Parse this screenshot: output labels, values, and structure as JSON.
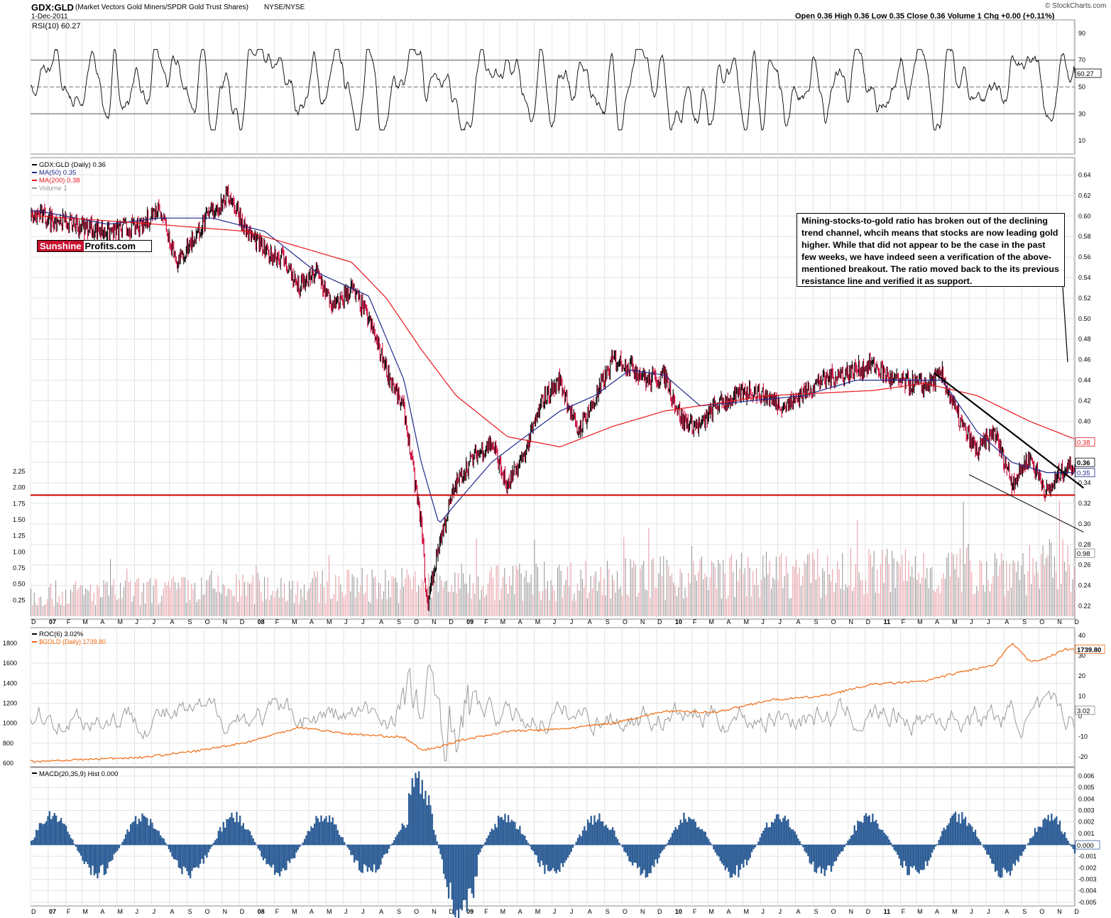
{
  "header": {
    "symbol": "GDX:GLD",
    "description": "(Market Vectors Gold Miners/SPDR Gold Trust Shares)",
    "exchange": "NYSE/NYSE",
    "date": "1-Dec-2011",
    "ohlc": "Open 0.36  High 0.36  Low 0.35  Close 0.36  Volume 1  Chg +0.00 (+0.11%)",
    "copyright": "© StockCharts.com"
  },
  "logo": {
    "part1": "Sunshine",
    "part2": "Profits.com"
  },
  "annotation": "Mining-stocks-to-gold ratio has broken out of the declining trend channel, whcih means that stocks are now leading gold higher. While that did not appear to be the case in the past few weeks, we have indeed seen a verification of the above-mentioned breakout. The ratio moved back to the its previous resistance line and verified it as support.",
  "colors": {
    "price_up": "#000000",
    "price_down": "#cc0033",
    "ma50": "#1f2a8c",
    "ma200": "#e8161c",
    "support": "#cc0000",
    "volume_up": "#9a9a9a",
    "volume_down": "#e8a0a8",
    "gold": "#ee6a10",
    "roc": "#9a9a9a",
    "macd": "#2d5d96"
  },
  "chart_data": [
    {
      "type": "line",
      "title": "RSI(10) 60.27",
      "last_value": "60.27",
      "ylim": [
        0,
        100
      ],
      "y_ticks": [
        "90",
        "70",
        "50",
        "30",
        "10"
      ],
      "reference_lines": [
        70,
        50,
        30
      ],
      "approx_range": [
        18,
        78
      ]
    },
    {
      "type": "line",
      "title": "GDX:GLD (Daily) 0.36",
      "x_start": "Dec 2006",
      "x_end": "Dec 2011",
      "ylim": [
        0.21,
        0.65
      ],
      "y_ticks": [
        "0.64",
        "0.62",
        "0.60",
        "0.58",
        "0.56",
        "0.54",
        "0.52",
        "0.50",
        "0.48",
        "0.46",
        "0.44",
        "0.42",
        "0.40",
        "0.38",
        "0.36",
        "0.34",
        "0.32",
        "0.30",
        "0.28",
        "0.26",
        "0.24",
        "0.22"
      ],
      "legend": [
        {
          "name": "GDX:GLD (Daily) 0.36",
          "color": "#000000"
        },
        {
          "name": "MA(50) 0.35",
          "color": "#1f2a8c"
        },
        {
          "name": "MA(200) 0.38",
          "color": "#e8161c"
        },
        {
          "name": "Volume 1",
          "color": "#9a9a9a"
        }
      ],
      "labels_right": {
        "close": "0.36",
        "ma50": "0.35",
        "ma200": "0.38",
        "volume": "0.98"
      },
      "series": [
        {
          "name": "GDX:GLD",
          "points": [
            [
              "2006-12",
              0.6
            ],
            [
              "2007-02",
              0.592
            ],
            [
              "2007-04",
              0.585
            ],
            [
              "2007-06",
              0.59
            ],
            [
              "2007-07",
              0.61
            ],
            [
              "2007-08",
              0.555
            ],
            [
              "2007-09",
              0.58
            ],
            [
              "2007-10",
              0.605
            ],
            [
              "2007-11",
              0.62
            ],
            [
              "2007-12",
              0.585
            ],
            [
              "2008-01",
              0.565
            ],
            [
              "2008-02",
              0.56
            ],
            [
              "2008-03",
              0.53
            ],
            [
              "2008-04",
              0.545
            ],
            [
              "2008-05",
              0.51
            ],
            [
              "2008-06",
              0.53
            ],
            [
              "2008-07",
              0.5
            ],
            [
              "2008-08",
              0.45
            ],
            [
              "2008-09",
              0.41
            ],
            [
              "2008-10",
              0.3
            ],
            [
              "2008-10-25",
              0.22
            ],
            [
              "2008-11",
              0.28
            ],
            [
              "2008-12",
              0.34
            ],
            [
              "2009-01",
              0.365
            ],
            [
              "2009-02",
              0.38
            ],
            [
              "2009-03",
              0.335
            ],
            [
              "2009-04",
              0.37
            ],
            [
              "2009-05",
              0.42
            ],
            [
              "2009-06",
              0.44
            ],
            [
              "2009-07",
              0.39
            ],
            [
              "2009-08",
              0.42
            ],
            [
              "2009-09",
              0.46
            ],
            [
              "2009-10",
              0.455
            ],
            [
              "2009-11",
              0.44
            ],
            [
              "2009-12",
              0.445
            ],
            [
              "2010-01",
              0.4
            ],
            [
              "2010-02",
              0.395
            ],
            [
              "2010-03",
              0.415
            ],
            [
              "2010-05",
              0.43
            ],
            [
              "2010-07",
              0.415
            ],
            [
              "2010-09",
              0.44
            ],
            [
              "2010-11",
              0.45
            ],
            [
              "2010-12",
              0.455
            ],
            [
              "2011-01",
              0.44
            ],
            [
              "2011-03",
              0.435
            ],
            [
              "2011-04",
              0.445
            ],
            [
              "2011-05",
              0.4
            ],
            [
              "2011-06",
              0.37
            ],
            [
              "2011-07",
              0.39
            ],
            [
              "2011-08",
              0.34
            ],
            [
              "2011-09",
              0.365
            ],
            [
              "2011-10",
              0.33
            ],
            [
              "2011-11",
              0.355
            ],
            [
              "2011-12",
              0.36
            ]
          ]
        },
        {
          "name": "MA(50)",
          "points": [
            [
              "2006-12",
              0.605
            ],
            [
              "2007-04",
              0.592
            ],
            [
              "2007-07",
              0.598
            ],
            [
              "2007-10",
              0.598
            ],
            [
              "2008-01",
              0.585
            ],
            [
              "2008-04",
              0.545
            ],
            [
              "2008-07",
              0.522
            ],
            [
              "2008-09",
              0.44
            ],
            [
              "2008-10",
              0.36
            ],
            [
              "2008-11",
              0.3
            ],
            [
              "2008-12",
              0.32
            ],
            [
              "2009-02",
              0.36
            ],
            [
              "2009-04",
              0.385
            ],
            [
              "2009-06",
              0.41
            ],
            [
              "2009-08",
              0.425
            ],
            [
              "2009-10",
              0.45
            ],
            [
              "2009-12",
              0.445
            ],
            [
              "2010-02",
              0.415
            ],
            [
              "2010-05",
              0.42
            ],
            [
              "2010-08",
              0.425
            ],
            [
              "2010-11",
              0.44
            ],
            [
              "2011-02",
              0.44
            ],
            [
              "2011-04",
              0.44
            ],
            [
              "2011-06",
              0.39
            ],
            [
              "2011-08",
              0.36
            ],
            [
              "2011-10",
              0.35
            ],
            [
              "2011-12",
              0.35
            ]
          ]
        },
        {
          "name": "MA(200)",
          "points": [
            [
              "2006-12",
              0.6
            ],
            [
              "2007-06",
              0.593
            ],
            [
              "2007-12",
              0.585
            ],
            [
              "2008-03",
              0.57
            ],
            [
              "2008-06",
              0.555
            ],
            [
              "2008-08",
              0.52
            ],
            [
              "2008-10",
              0.47
            ],
            [
              "2008-12",
              0.425
            ],
            [
              "2009-03",
              0.385
            ],
            [
              "2009-06",
              0.375
            ],
            [
              "2009-09",
              0.395
            ],
            [
              "2009-12",
              0.41
            ],
            [
              "2010-06",
              0.425
            ],
            [
              "2010-12",
              0.43
            ],
            [
              "2011-03",
              0.437
            ],
            [
              "2011-06",
              0.425
            ],
            [
              "2011-09",
              0.4
            ],
            [
              "2011-12",
              0.38
            ]
          ]
        }
      ],
      "support_line": 0.328,
      "trend_lines": [
        {
          "from": [
            "2011-04-01",
            0.447
          ],
          "to": [
            "2011-12-01",
            0.335
          ]
        },
        {
          "from": [
            "2011-06-01",
            0.348
          ],
          "to": [
            "2011-12-01",
            0.292
          ]
        }
      ]
    },
    {
      "type": "bar",
      "title": "Volume",
      "ylim": [
        0,
        2.5
      ],
      "y_ticks": [
        "2.25",
        "2.00",
        "1.75",
        "1.50",
        "1.25",
        "1.00",
        "0.75",
        "0.50",
        "0.25"
      ],
      "last_value": "0.98",
      "typical_level": [
        0.4,
        0.9
      ]
    },
    {
      "type": "line",
      "title": "ROC(6) 3.02%",
      "secondary_title": "$GOLD (Daily) 1739.80",
      "y_ticks_left": [
        "1800",
        "1600",
        "1400",
        "1200",
        "1000",
        "800",
        "600"
      ],
      "y_ticks_right": [
        "40",
        "30",
        "20",
        "10",
        "0",
        "-10",
        "-20"
      ],
      "labels_right": {
        "gold": "1739.80",
        "roc": "3.02"
      },
      "series": [
        {
          "name": "$GOLD",
          "points": [
            [
              "2006-12",
              620
            ],
            [
              "2007-06",
              660
            ],
            [
              "2007-09",
              720
            ],
            [
              "2007-12",
              810
            ],
            [
              "2008-03",
              960
            ],
            [
              "2008-06",
              890
            ],
            [
              "2008-09",
              860
            ],
            [
              "2008-10",
              730
            ],
            [
              "2008-11",
              760
            ],
            [
              "2008-12",
              820
            ],
            [
              "2009-03",
              920
            ],
            [
              "2009-06",
              940
            ],
            [
              "2009-09",
              1000
            ],
            [
              "2009-12",
              1120
            ],
            [
              "2010-03",
              1110
            ],
            [
              "2010-06",
              1230
            ],
            [
              "2010-09",
              1270
            ],
            [
              "2010-12",
              1390
            ],
            [
              "2011-03",
              1420
            ],
            [
              "2011-05",
              1510
            ],
            [
              "2011-07",
              1580
            ],
            [
              "2011-08",
              1800
            ],
            [
              "2011-09",
              1620
            ],
            [
              "2011-10",
              1650
            ],
            [
              "2011-11",
              1740
            ],
            [
              "2011-12",
              1739.8
            ]
          ]
        },
        {
          "name": "ROC(6)",
          "range": [
            -22,
            37
          ]
        }
      ]
    },
    {
      "type": "bar",
      "title": "MACD(20,35,9) Hist 0.000",
      "ylim": [
        -0.0055,
        0.0065
      ],
      "y_ticks": [
        "0.006",
        "0.005",
        "0.004",
        "0.003",
        "0.002",
        "0.001",
        "0.000",
        "-0.001",
        "-0.002",
        "-0.003",
        "-0.004",
        "-0.005"
      ],
      "last_value": "0.000"
    }
  ],
  "x_axis_labels": [
    "D",
    "07",
    "F",
    "M",
    "A",
    "M",
    "J",
    "J",
    "A",
    "S",
    "O",
    "N",
    "D",
    "08",
    "F",
    "M",
    "A",
    "M",
    "J",
    "J",
    "A",
    "S",
    "O",
    "N",
    "D",
    "09",
    "F",
    "M",
    "A",
    "M",
    "J",
    "J",
    "A",
    "S",
    "O",
    "N",
    "D",
    "10",
    "F",
    "M",
    "A",
    "M",
    "J",
    "J",
    "A",
    "S",
    "O",
    "N",
    "D",
    "11",
    "F",
    "M",
    "A",
    "M",
    "J",
    "J",
    "A",
    "S",
    "O",
    "N",
    "D"
  ]
}
